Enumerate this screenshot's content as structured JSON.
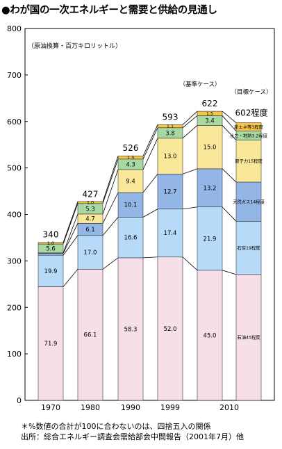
{
  "title": "●わが国の一次エネルギーと需要と供給の見通し",
  "footnotes": [
    "＊%数値の合計が100に合わないのは、四捨五入の関係",
    "出所：総合エネルギー調査会需給部会中間報告（2001年7月）他"
  ],
  "chart_data": {
    "type": "bar",
    "stacked": true,
    "unit_label": "（原油換算・百万キロリットル）",
    "ylim": [
      0,
      800
    ],
    "yticks": [
      0,
      100,
      200,
      300,
      400,
      500,
      600,
      700,
      800
    ],
    "grid": false,
    "connector_lines": true,
    "categories": [
      "1970",
      "1980",
      "1990",
      "1999",
      "2010基準",
      "2010目標"
    ],
    "x_tick_labels": [
      "1970",
      "1980",
      "1990",
      "1999",
      "2010"
    ],
    "totals": [
      340,
      427,
      526,
      593,
      622,
      602
    ],
    "total_labels": [
      "340",
      "427",
      "526",
      "593",
      "622",
      "602程度"
    ],
    "case_labels": [
      "（基準ケース）",
      "（目標ケース）"
    ],
    "colors": {
      "oil": "#f7dfe9",
      "coal": "#b6daf7",
      "gas": "#93b6e6",
      "nuclear": "#fae89a",
      "hydro": "#a9d9a3",
      "new": "#f5c64b"
    },
    "series": [
      {
        "key": "oil",
        "values": [
          244.5,
          282.2,
          306.7,
          308.4,
          279.9,
          270.9
        ],
        "labels": [
          "71.9",
          "66.1",
          "58.3",
          "52.0",
          "45.0",
          "石油45程度"
        ]
      },
      {
        "key": "coal",
        "values": [
          67.7,
          72.6,
          87.3,
          103.2,
          136.2,
          114.4
        ],
        "labels": [
          "19.9",
          "17.0",
          "16.6",
          "17.4",
          "21.9",
          "石炭19程度"
        ]
      },
      {
        "key": "gas",
        "values": [
          4.1,
          26.0,
          53.1,
          75.3,
          82.1,
          84.3
        ],
        "labels": [
          "",
          "6.1",
          "10.1",
          "12.7",
          "13.2",
          "天然ガス14程度"
        ]
      },
      {
        "key": "nuclear",
        "values": [
          1.0,
          20.1,
          49.4,
          77.1,
          93.3,
          90.3
        ],
        "labels": [
          "",
          "4.7",
          "9.4",
          "13.0",
          "15.0",
          "原子力15程度"
        ]
      },
      {
        "key": "hydro",
        "values": [
          19.0,
          22.6,
          22.6,
          22.5,
          21.1,
          19.3
        ],
        "labels": [
          "5.6",
          "5.3",
          "4.3",
          "3.8",
          "3.4",
          "水力・地熱3.2程度"
        ]
      },
      {
        "key": "new",
        "values": [
          3.4,
          4.3,
          6.8,
          6.5,
          9.3,
          18.1
        ],
        "labels": [
          "1.0",
          "1.0",
          "1.3",
          "1.1",
          "1.5",
          "新エネ等3程度"
        ]
      }
    ]
  }
}
